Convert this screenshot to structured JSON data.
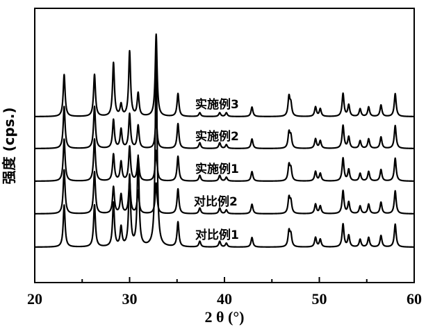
{
  "chart_data": {
    "type": "line",
    "title": "",
    "xlabel": "2 θ (°)",
    "ylabel": "强度 (cps.)",
    "xlim": [
      20,
      60
    ],
    "x_ticks": [
      20,
      30,
      40,
      50,
      60
    ],
    "y_ticks_shown": false,
    "grid": false,
    "legend": "none",
    "stacked_offset": true,
    "peaks_2theta": [
      23.1,
      26.3,
      28.3,
      29.1,
      30.0,
      30.9,
      32.8,
      35.1,
      37.4,
      39.5,
      40.2,
      42.9,
      46.8,
      47.0,
      49.6,
      50.1,
      52.5,
      53.1,
      54.3,
      55.2,
      56.5,
      58.0
    ],
    "series": [
      {
        "name": "对比例1",
        "intensity": [
          0.22,
          0.22,
          0.23,
          0.1,
          0.37,
          0.47,
          1.0,
          0.13,
          0.03,
          0.03,
          0.02,
          0.05,
          0.08,
          0.06,
          0.05,
          0.04,
          0.12,
          0.06,
          0.04,
          0.05,
          0.06,
          0.12
        ]
      },
      {
        "name": "对比例2",
        "intensity": [
          0.23,
          0.22,
          0.14,
          0.1,
          0.17,
          0.12,
          0.16,
          0.13,
          0.03,
          0.03,
          0.02,
          0.05,
          0.08,
          0.06,
          0.05,
          0.04,
          0.12,
          0.06,
          0.04,
          0.05,
          0.06,
          0.12
        ]
      },
      {
        "name": "实施例1",
        "intensity": [
          0.22,
          0.22,
          0.14,
          0.1,
          0.18,
          0.12,
          0.16,
          0.13,
          0.03,
          0.03,
          0.02,
          0.05,
          0.08,
          0.06,
          0.05,
          0.04,
          0.12,
          0.06,
          0.04,
          0.05,
          0.06,
          0.12
        ]
      },
      {
        "name": "实施例2",
        "intensity": [
          0.22,
          0.22,
          0.15,
          0.1,
          0.18,
          0.12,
          0.16,
          0.13,
          0.03,
          0.03,
          0.02,
          0.05,
          0.08,
          0.06,
          0.05,
          0.04,
          0.12,
          0.06,
          0.04,
          0.05,
          0.06,
          0.12
        ]
      },
      {
        "name": "实施例3",
        "intensity": [
          0.22,
          0.22,
          0.28,
          0.06,
          0.34,
          0.12,
          0.43,
          0.12,
          0.02,
          0.02,
          0.02,
          0.05,
          0.1,
          0.06,
          0.05,
          0.04,
          0.12,
          0.06,
          0.04,
          0.05,
          0.06,
          0.12
        ]
      }
    ]
  }
}
